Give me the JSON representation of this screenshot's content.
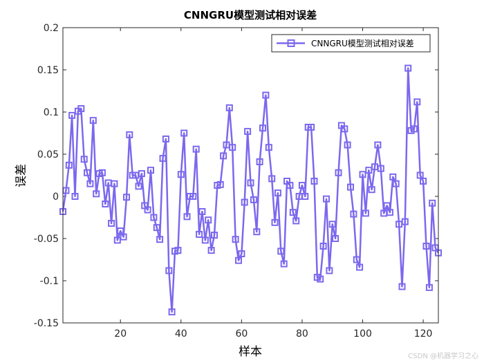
{
  "chart_data": {
    "type": "line",
    "title": "CNNGRU模型测试相对误差",
    "xlabel": "样本",
    "ylabel": "误差",
    "xlim": [
      1,
      125
    ],
    "ylim": [
      -0.15,
      0.2
    ],
    "xticks": [
      20,
      40,
      60,
      80,
      100,
      120
    ],
    "yticks": [
      -0.15,
      -0.1,
      -0.05,
      0,
      0.05,
      0.1,
      0.15,
      0.2
    ],
    "ytick_labels": [
      "-0.15",
      "-0.1",
      "-0.05",
      "0",
      "0.05",
      "0.1",
      "0.15",
      "0.2"
    ],
    "grid": false,
    "legend_position": "top-right",
    "series": [
      {
        "name": "CNNGRU模型测试相对误差",
        "color": "#7b68ee",
        "marker": "square",
        "x": [
          1,
          2,
          3,
          4,
          5,
          6,
          7,
          8,
          9,
          10,
          11,
          12,
          13,
          14,
          15,
          16,
          17,
          18,
          19,
          20,
          21,
          22,
          23,
          24,
          25,
          26,
          27,
          28,
          29,
          30,
          31,
          32,
          33,
          34,
          35,
          36,
          37,
          38,
          39,
          40,
          41,
          42,
          43,
          44,
          45,
          46,
          47,
          48,
          49,
          50,
          51,
          52,
          53,
          54,
          55,
          56,
          57,
          58,
          59,
          60,
          61,
          62,
          63,
          64,
          65,
          66,
          67,
          68,
          69,
          70,
          71,
          72,
          73,
          74,
          75,
          76,
          77,
          78,
          79,
          80,
          81,
          82,
          83,
          84,
          85,
          86,
          87,
          88,
          89,
          90,
          91,
          92,
          93,
          94,
          95,
          96,
          97,
          98,
          99,
          100,
          101,
          102,
          103,
          104,
          105,
          106,
          107,
          108,
          109,
          110,
          111,
          112,
          113,
          114,
          115,
          116,
          117,
          118,
          119,
          120,
          121,
          122,
          123,
          124,
          125
        ],
        "values": [
          -0.018,
          0.007,
          0.037,
          0.096,
          0.0,
          0.101,
          0.104,
          0.044,
          0.028,
          0.015,
          0.09,
          0.003,
          0.027,
          0.028,
          -0.009,
          0.016,
          -0.032,
          0.015,
          -0.052,
          -0.041,
          -0.048,
          -0.001,
          0.073,
          0.025,
          0.025,
          0.012,
          0.027,
          -0.011,
          -0.016,
          0.031,
          -0.025,
          -0.037,
          -0.051,
          0.045,
          0.068,
          -0.088,
          -0.137,
          -0.065,
          -0.064,
          0.026,
          0.075,
          -0.024,
          0.0,
          0.0,
          0.056,
          -0.045,
          -0.018,
          -0.052,
          -0.028,
          -0.064,
          -0.046,
          0.013,
          0.014,
          0.048,
          0.061,
          0.105,
          0.058,
          -0.051,
          -0.076,
          -0.068,
          -0.007,
          0.077,
          0.016,
          -0.004,
          -0.042,
          0.041,
          0.081,
          0.12,
          0.058,
          0.021,
          -0.031,
          0.004,
          -0.065,
          -0.08,
          0.018,
          0.013,
          -0.019,
          -0.029,
          0.0,
          0.013,
          0.0,
          0.082,
          0.082,
          0.018,
          -0.096,
          -0.098,
          -0.059,
          -0.003,
          -0.088,
          -0.033,
          -0.05,
          0.028,
          0.084,
          0.08,
          0.061,
          0.011,
          -0.021,
          -0.075,
          -0.084,
          0.026,
          -0.02,
          0.031,
          0.008,
          0.035,
          0.061,
          0.033,
          -0.02,
          -0.011,
          -0.019,
          0.023,
          0.015,
          -0.033,
          -0.107,
          -0.03,
          0.152,
          0.078,
          0.08,
          0.112,
          0.025,
          0.018,
          -0.059,
          -0.108,
          -0.008,
          -0.061,
          -0.067
        ]
      }
    ]
  },
  "watermark": "CSDN @机器学习之心"
}
